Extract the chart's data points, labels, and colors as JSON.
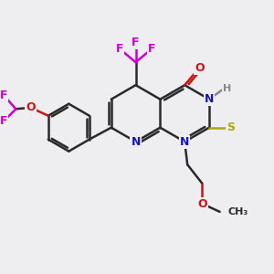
{
  "bg_color": "#eeeef0",
  "bond_color": "#2a2a2a",
  "bond_lw": 1.8,
  "font_size": 9.0,
  "colors": {
    "N": "#1414cc",
    "O": "#cc1414",
    "F": "#cc00cc",
    "S": "#aaaa00",
    "H": "#888888",
    "C": "#2a2a2a"
  }
}
